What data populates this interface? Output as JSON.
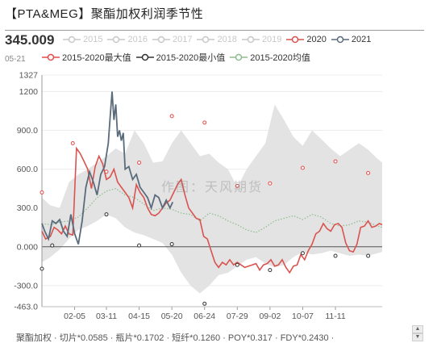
{
  "title": "【PTA&MEG】聚酯加权利润季节性",
  "current": {
    "value": "345.009",
    "date": "05-21"
  },
  "legend_row1": [
    {
      "label": "2015",
      "color": "#c8c8c8",
      "active": false
    },
    {
      "label": "2016",
      "color": "#c8c8c8",
      "active": false
    },
    {
      "label": "2017",
      "color": "#c8c8c8",
      "active": false
    },
    {
      "label": "2018",
      "color": "#c8c8c8",
      "active": false
    },
    {
      "label": "2019",
      "color": "#c8c8c8",
      "active": false
    },
    {
      "label": "2020",
      "color": "#d9534f",
      "active": true
    },
    {
      "label": "2021",
      "color": "#5a6b7b",
      "active": true
    }
  ],
  "legend_row2": [
    {
      "label": "2015-2020最大值",
      "color": "#e84a4a",
      "active": true
    },
    {
      "label": "2015-2020最小值",
      "color": "#333333",
      "active": true
    },
    {
      "label": "2015-2020均值",
      "color": "#8fbc8f",
      "active": true
    }
  ],
  "watermark": "作图：天风期货",
  "bottom_text": "聚酯加权  ·  切片*0.0585  ·  瓶片*0.1702  ·  短纤*0.1260  ·  POY*0.317  ·  FDY*0.2430  ·",
  "colors": {
    "y2020": "#d9534f",
    "y2021": "#5a6b7b",
    "max": "#e84a4a",
    "min": "#333333",
    "mean": "#8fbc8f",
    "band": "#e3e3e3",
    "zero": "#555555"
  },
  "chart_data": {
    "type": "line",
    "x_ticks": [
      "02-05",
      "03-11",
      "04-15",
      "05-20",
      "06-24",
      "07-29",
      "09-02",
      "10-07",
      "11-11"
    ],
    "x_tick_day": [
      36,
      70,
      105,
      140,
      175,
      210,
      245,
      280,
      315
    ],
    "x_range": [
      1,
      365
    ],
    "y_ticks": [
      -463.0,
      -300.0,
      0.0,
      300.0,
      600.0,
      900.0,
      1200.0,
      1327
    ],
    "y_tick_labels": [
      "-463.0",
      "-300.0",
      "0.000",
      "300.0",
      "600.0",
      "900.0",
      "1200",
      "1327"
    ],
    "ylim": [
      -463,
      1327
    ],
    "series": [
      {
        "name": "2020",
        "x": [
          1,
          5,
          10,
          14,
          18,
          22,
          26,
          30,
          34,
          38,
          42,
          46,
          50,
          54,
          58,
          62,
          66,
          70,
          74,
          78,
          82,
          86,
          90,
          94,
          98,
          102,
          106,
          110,
          114,
          118,
          122,
          126,
          130,
          134,
          138,
          142,
          146,
          150,
          154,
          158,
          162,
          166,
          170,
          174,
          178,
          182,
          186,
          190,
          194,
          198,
          202,
          206,
          210,
          214,
          218,
          222,
          226,
          230,
          234,
          238,
          242,
          246,
          250,
          254,
          258,
          262,
          266,
          270,
          274,
          278,
          282,
          286,
          290,
          294,
          298,
          302,
          306,
          310,
          314,
          318,
          322,
          326,
          330,
          334,
          338,
          342,
          346,
          350,
          354,
          358,
          362,
          365
        ],
        "y": [
          120,
          60,
          80,
          150,
          130,
          100,
          160,
          100,
          90,
          760,
          720,
          660,
          600,
          450,
          620,
          700,
          640,
          520,
          540,
          600,
          500,
          460,
          420,
          380,
          300,
          480,
          420,
          380,
          300,
          250,
          240,
          260,
          300,
          340,
          360,
          420,
          480,
          520,
          400,
          300,
          260,
          220,
          210,
          80,
          60,
          -30,
          -120,
          -160,
          -120,
          -140,
          -100,
          -140,
          -120,
          -140,
          -160,
          -150,
          -140,
          -130,
          -180,
          -140,
          -130,
          -100,
          -150,
          -140,
          -100,
          -160,
          -200,
          -150,
          -140,
          -60,
          -100,
          -30,
          20,
          100,
          120,
          180,
          140,
          120,
          170,
          180,
          150,
          30,
          -30,
          -40,
          20,
          150,
          160,
          200,
          150,
          160,
          180,
          170
        ]
      },
      {
        "name": "2021",
        "x": [
          1,
          4,
          8,
          12,
          16,
          20,
          24,
          28,
          32,
          36,
          40,
          44,
          48,
          52,
          56,
          60,
          64,
          68,
          72,
          74,
          76,
          78,
          80,
          82,
          84,
          86,
          88,
          90,
          94,
          98,
          102,
          106,
          110,
          114,
          118,
          122,
          126,
          130,
          134,
          138,
          141
        ],
        "y": [
          180,
          120,
          60,
          200,
          180,
          210,
          120,
          80,
          250,
          100,
          20,
          200,
          460,
          580,
          500,
          400,
          560,
          620,
          800,
          1000,
          1200,
          980,
          1100,
          850,
          900,
          820,
          880,
          600,
          620,
          520,
          560,
          460,
          420,
          380,
          300,
          400,
          380,
          300,
          360,
          300,
          345
        ]
      },
      {
        "name": "2015-2020最大值",
        "x": [
          1,
          34,
          70,
          105,
          140,
          175,
          210,
          245,
          280,
          315,
          350
        ],
        "y": [
          420,
          800,
          580,
          650,
          1010,
          960,
          470,
          490,
          610,
          660,
          570
        ]
      },
      {
        "name": "2015-2020最小值",
        "x": [
          1,
          12,
          70,
          105,
          140,
          175,
          210,
          245,
          280,
          315,
          350
        ],
        "y": [
          -170,
          10,
          250,
          10,
          20,
          -440,
          -140,
          -180,
          -50,
          -70,
          -70
        ]
      },
      {
        "name": "2015-2020均值",
        "x": [
          1,
          10,
          20,
          30,
          40,
          50,
          60,
          70,
          80,
          90,
          100,
          110,
          120,
          130,
          140,
          150,
          160,
          170,
          180,
          190,
          200,
          210,
          220,
          230,
          240,
          250,
          260,
          270,
          280,
          290,
          300,
          310,
          320,
          330,
          340,
          350,
          360,
          365
        ],
        "y": [
          180,
          170,
          190,
          200,
          230,
          300,
          380,
          430,
          450,
          400,
          380,
          330,
          280,
          300,
          290,
          260,
          250,
          200,
          260,
          240,
          200,
          170,
          130,
          110,
          150,
          200,
          220,
          240,
          210,
          250,
          230,
          180,
          160,
          170,
          200,
          190,
          160,
          150
        ]
      }
    ],
    "band": {
      "x": [
        1,
        10,
        20,
        30,
        40,
        50,
        60,
        70,
        80,
        90,
        100,
        110,
        120,
        130,
        140,
        150,
        160,
        170,
        180,
        190,
        200,
        210,
        220,
        230,
        240,
        250,
        260,
        270,
        280,
        290,
        300,
        310,
        320,
        330,
        340,
        350,
        360,
        365
      ],
      "upper": [
        380,
        320,
        300,
        500,
        560,
        600,
        650,
        700,
        760,
        720,
        900,
        800,
        650,
        660,
        800,
        900,
        800,
        700,
        720,
        650,
        600,
        460,
        600,
        700,
        800,
        1100,
        980,
        850,
        780,
        900,
        830,
        760,
        700,
        750,
        800,
        750,
        680,
        650
      ],
      "lower": [
        -120,
        -80,
        -20,
        60,
        130,
        160,
        200,
        250,
        220,
        150,
        110,
        90,
        60,
        30,
        -60,
        -200,
        -300,
        -360,
        -300,
        -220,
        -200,
        -150,
        -100,
        -80,
        -130,
        -160,
        -140,
        -80,
        -40,
        -60,
        -50,
        -30,
        -50,
        -70,
        -60,
        -70,
        -50,
        -40
      ]
    }
  }
}
